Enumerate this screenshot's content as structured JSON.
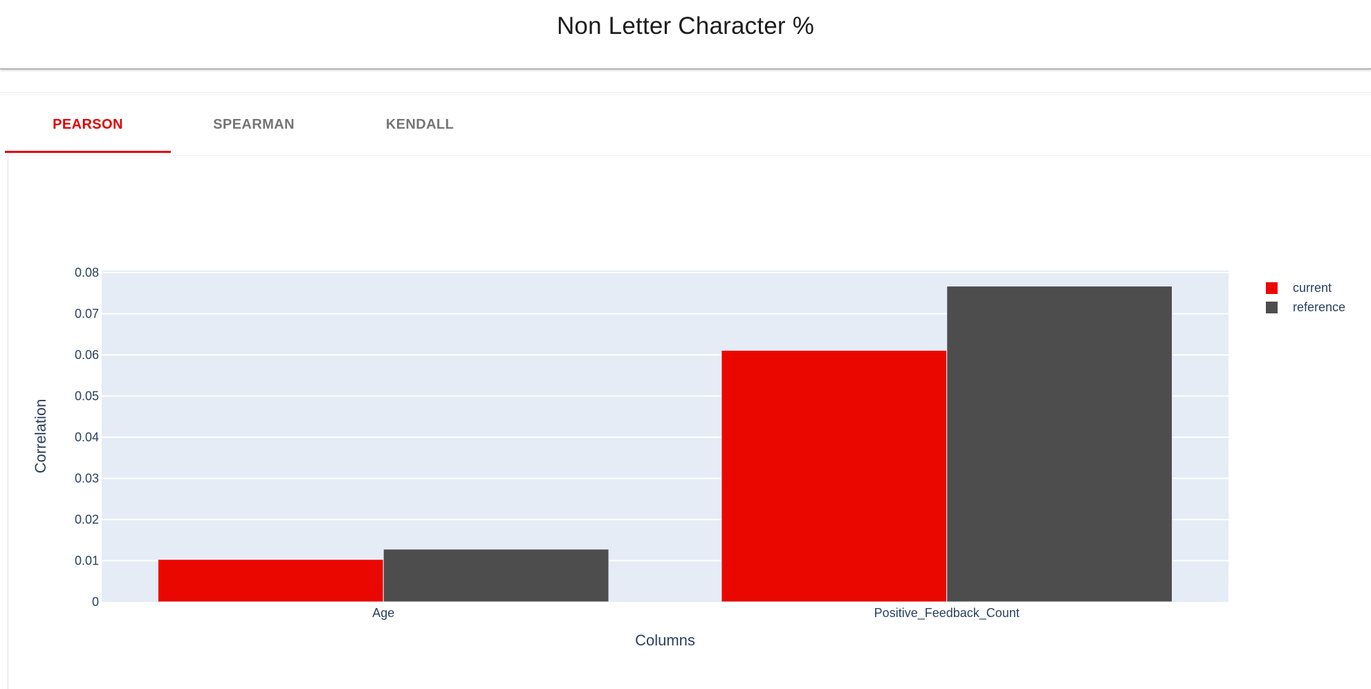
{
  "page": {
    "title": "Non Letter Character %"
  },
  "tabs": [
    {
      "label": "PEARSON",
      "active": true
    },
    {
      "label": "SPEARMAN",
      "active": false
    },
    {
      "label": "KENDALL",
      "active": false
    }
  ],
  "colors": {
    "accent": "#e30000",
    "current": "#ea0700",
    "reference": "#4d4d4d",
    "plot_bg": "#e5ecf6",
    "axis_text": "#2a3f5f"
  },
  "chart_data": {
    "type": "bar",
    "title": "",
    "xlabel": "Columns",
    "ylabel": "Correlation",
    "categories": [
      "Age",
      "Positive_Feedback_Count"
    ],
    "series": [
      {
        "name": "current",
        "values": [
          0.0103,
          0.0611
        ]
      },
      {
        "name": "reference",
        "values": [
          0.0128,
          0.0767
        ]
      }
    ],
    "ylim": [
      0,
      0.0805
    ],
    "yticks": [
      0,
      0.01,
      0.02,
      0.03,
      0.04,
      0.05,
      0.06,
      0.07,
      0.08
    ],
    "ytick_labels": [
      "0",
      "0.01",
      "0.02",
      "0.03",
      "0.04",
      "0.05",
      "0.06",
      "0.07",
      "0.08"
    ],
    "grid": true,
    "legend_position": "top-right"
  }
}
